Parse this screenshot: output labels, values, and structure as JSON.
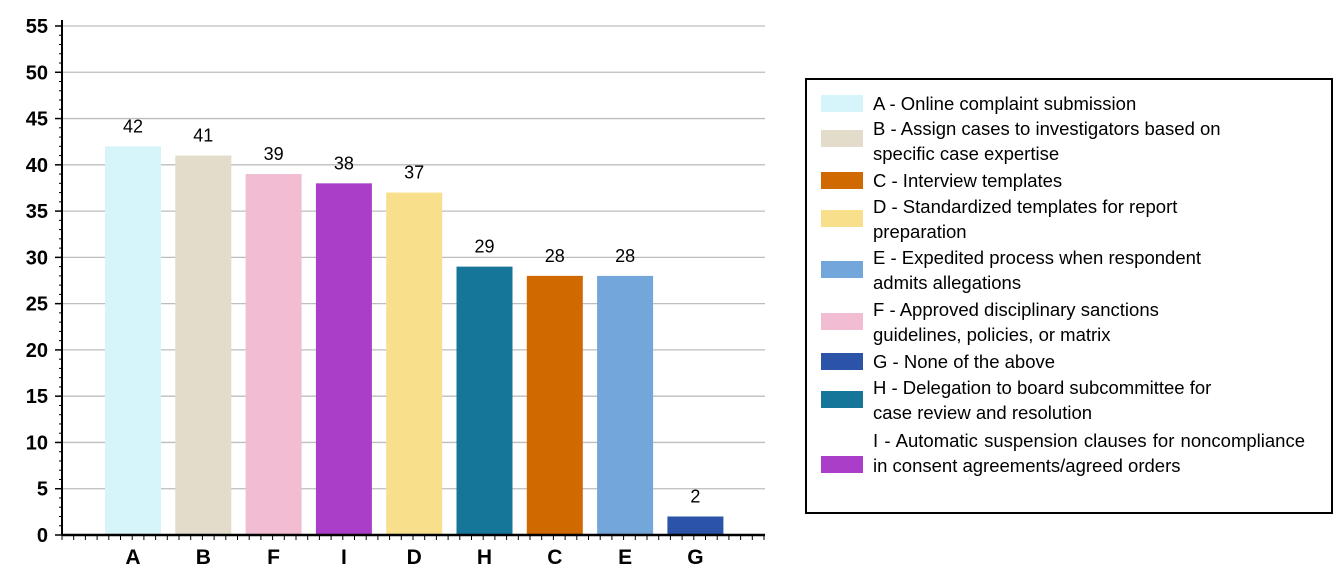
{
  "chart_data": {
    "type": "bar",
    "categories": [
      "A",
      "B",
      "F",
      "I",
      "D",
      "H",
      "C",
      "E",
      "G"
    ],
    "values": [
      42,
      41,
      39,
      38,
      37,
      29,
      28,
      28,
      2
    ],
    "data_labels": [
      "42",
      "41",
      "39",
      "38",
      "37",
      "29",
      "28",
      "28",
      "2"
    ],
    "colors": [
      "#d5f5fa",
      "#e4dccb",
      "#f2bcd3",
      "#ab3ec8",
      "#f8df8b",
      "#15769a",
      "#d06900",
      "#73a6da",
      "#2b54a8"
    ],
    "ylim": [
      0,
      55
    ],
    "yticks": [
      "0",
      "5",
      "10",
      "15",
      "20",
      "25",
      "30",
      "35",
      "40",
      "45",
      "50",
      "55"
    ],
    "grid": true,
    "legend_position": "right",
    "legend": [
      {
        "key": "A",
        "label": "A - Online complaint submission",
        "color": "#d5f5fa"
      },
      {
        "key": "B",
        "label": "B - Assign cases to investigators based on specific case expertise",
        "color": "#e4dccb"
      },
      {
        "key": "C",
        "label": "C - Interview templates",
        "color": "#d06900"
      },
      {
        "key": "D",
        "label": "D - Standardized templates for report preparation",
        "color": "#f8df8b"
      },
      {
        "key": "E",
        "label": "E - Expedited process when respondent admits allegations",
        "color": "#73a6da"
      },
      {
        "key": "F",
        "label": "F - Approved disciplinary sanctions guidelines, policies, or matrix",
        "color": "#f2bcd3"
      },
      {
        "key": "G",
        "label": "G - None of the above",
        "color": "#2b54a8"
      },
      {
        "key": "H",
        "label": "H - Delegation to board subcommittee for case review and resolution",
        "color": "#15769a"
      },
      {
        "key": "I",
        "label": "I - Automatic suspension clauses for noncompliance in consent agreements/agreed orders",
        "color": "#ab3ec8"
      }
    ]
  }
}
